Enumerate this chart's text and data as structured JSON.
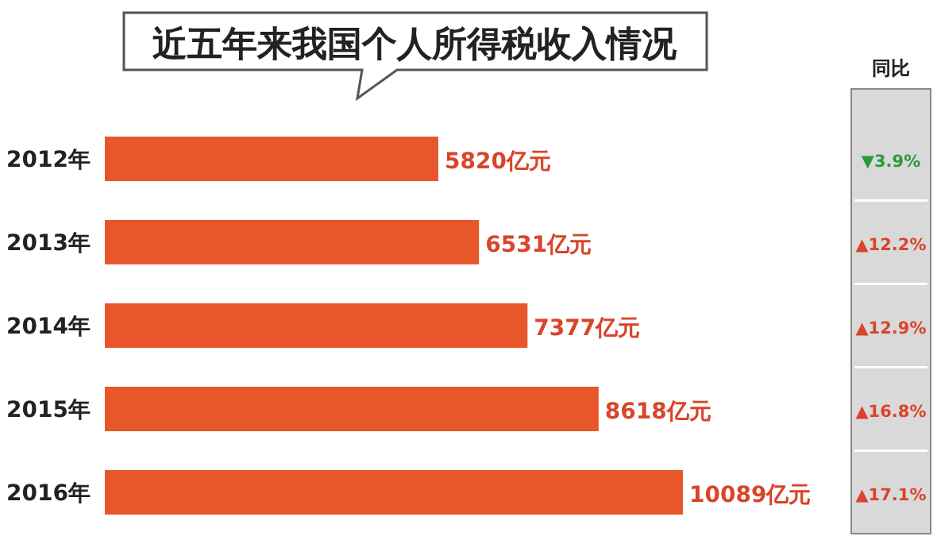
{
  "chart_data": {
    "type": "bar",
    "orientation": "horizontal",
    "title": "近五年来我国个人所得税收入情况",
    "categories": [
      "2012年",
      "2013年",
      "2014年",
      "2015年",
      "2016年"
    ],
    "values": [
      5820,
      6531,
      7377,
      8618,
      10089
    ],
    "value_labels": [
      "5820亿元",
      "6531亿元",
      "7377亿元",
      "8618亿元",
      "10089亿元"
    ],
    "color": "#e8572a",
    "annotations": [
      "同比",
      "▼3.9%",
      "▲12.2%",
      "▲12.9%",
      "▲16.8%",
      "▲17.1%"
    ]
  }
}
